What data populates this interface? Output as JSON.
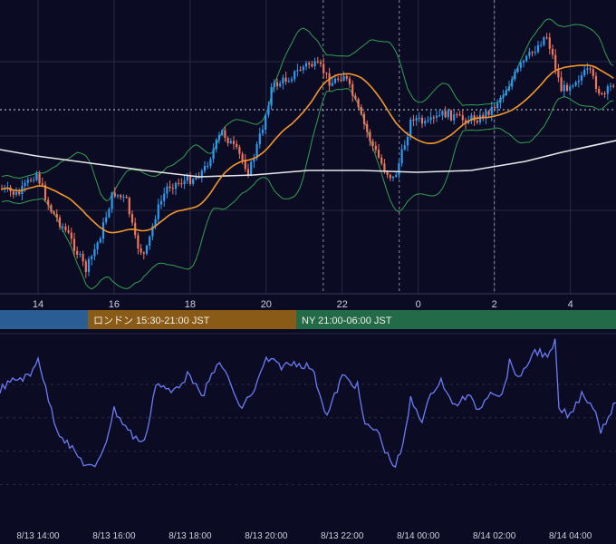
{
  "colors": {
    "background": "#0b0b24",
    "grid": "#2a2a45",
    "bull": "#2f9bf0",
    "bear": "#f0765b",
    "ma_fast": "#f3972b",
    "ma_slow": "#e8e8e8",
    "bollinger": "#33a04f",
    "oscillator": "#6c7cf5",
    "text": "#cfd0da",
    "session_tokyo": "#2a5d93",
    "session_london": "#8a5a17",
    "session_ny": "#236b48"
  },
  "sessions": {
    "london": "ロンドン 15:30-21:00 JST",
    "ny": "NY 21:00-06:00 JST"
  },
  "chart_data": [
    {
      "type": "candlestick",
      "x_unit": "hours since 8/13 13:00 JST",
      "xlim": [
        0,
        16.2
      ],
      "x_tick_labels": [
        "14",
        "16",
        "18",
        "20",
        "22",
        "0",
        "2",
        "4"
      ],
      "x_tick_values": [
        1,
        3,
        5,
        7,
        9,
        11,
        13,
        15
      ],
      "session_markers": [
        8.5,
        10.5,
        13
      ],
      "overlays": [
        "bollinger-bands",
        "fast-moving-average",
        "slow-moving-average"
      ],
      "grid": true
    },
    {
      "type": "line",
      "xlim": [
        0,
        16.2
      ],
      "x_tick_labels": [
        "8/13 14:00",
        "8/13 16:00",
        "8/13 18:00",
        "8/13 20:00",
        "8/13 22:00",
        "8/14 00:00",
        "8/14 02:00",
        "8/14 04:00"
      ],
      "x_tick_values": [
        1,
        3,
        5,
        7,
        9,
        11,
        13,
        15
      ],
      "y_tick_values": [
        0.15,
        0.35,
        0.55,
        0.75
      ],
      "grid": true,
      "series": [
        {
          "points": [
            [
              0.0,
              0.72
            ],
            [
              0.4,
              0.78
            ],
            [
              0.8,
              0.8
            ],
            [
              1.0,
              0.92
            ],
            [
              1.2,
              0.72
            ],
            [
              1.5,
              0.48
            ],
            [
              1.9,
              0.36
            ],
            [
              2.2,
              0.28
            ],
            [
              2.5,
              0.24
            ],
            [
              2.8,
              0.42
            ],
            [
              3.0,
              0.6
            ],
            [
              3.3,
              0.5
            ],
            [
              3.5,
              0.44
            ],
            [
              3.8,
              0.4
            ],
            [
              4.1,
              0.76
            ],
            [
              4.5,
              0.7
            ],
            [
              5.0,
              0.82
            ],
            [
              5.3,
              0.66
            ],
            [
              5.7,
              0.88
            ],
            [
              6.0,
              0.8
            ],
            [
              6.3,
              0.6
            ],
            [
              6.7,
              0.72
            ],
            [
              7.0,
              0.9
            ],
            [
              7.4,
              0.86
            ],
            [
              7.8,
              0.88
            ],
            [
              8.2,
              0.85
            ],
            [
              8.6,
              0.56
            ],
            [
              9.0,
              0.8
            ],
            [
              9.4,
              0.74
            ],
            [
              9.6,
              0.5
            ],
            [
              9.9,
              0.48
            ],
            [
              10.2,
              0.32
            ],
            [
              10.4,
              0.26
            ],
            [
              10.6,
              0.38
            ],
            [
              10.8,
              0.66
            ],
            [
              11.1,
              0.54
            ],
            [
              11.4,
              0.72
            ],
            [
              11.6,
              0.78
            ],
            [
              11.9,
              0.62
            ],
            [
              12.3,
              0.68
            ],
            [
              12.6,
              0.6
            ],
            [
              12.9,
              0.72
            ],
            [
              13.2,
              0.68
            ],
            [
              13.4,
              0.88
            ],
            [
              13.7,
              0.78
            ],
            [
              14.0,
              0.94
            ],
            [
              14.2,
              0.95
            ],
            [
              14.4,
              0.9
            ],
            [
              14.6,
              1.0
            ],
            [
              14.7,
              0.6
            ],
            [
              15.0,
              0.56
            ],
            [
              15.3,
              0.7
            ],
            [
              15.6,
              0.62
            ],
            [
              15.8,
              0.48
            ],
            [
              16.2,
              0.64
            ]
          ]
        }
      ]
    }
  ]
}
